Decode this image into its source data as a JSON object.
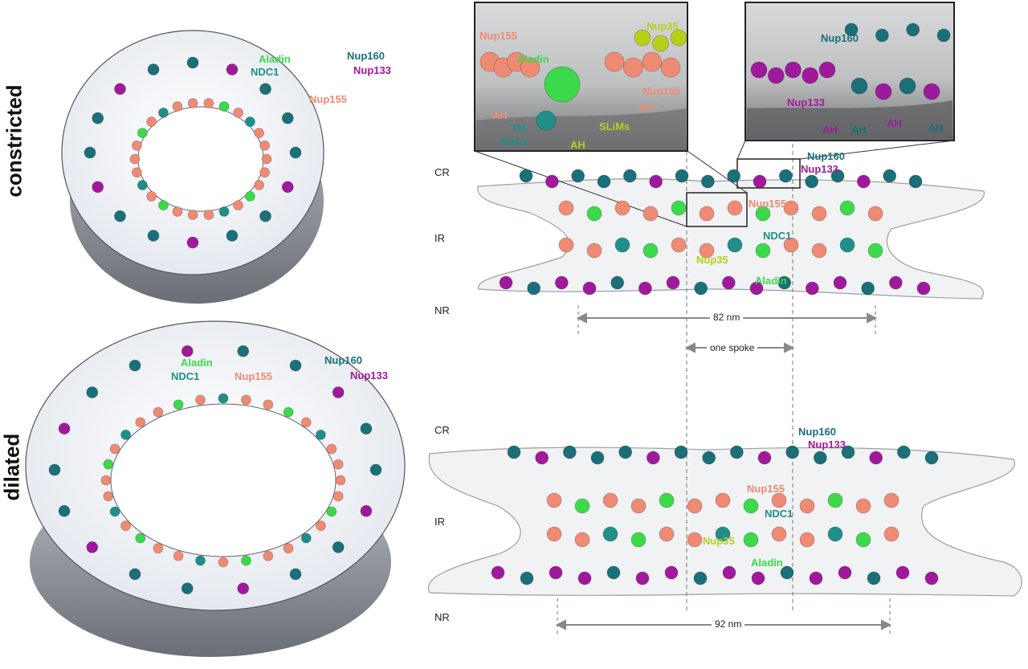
{
  "rows": {
    "top": "constricted",
    "bottom": "dilated"
  },
  "levels": {
    "cr": "CR",
    "ir": "IR",
    "nr": "NR"
  },
  "labels": {
    "nup160": "Nup160",
    "nup133": "Nup133",
    "nup155": "Nup155",
    "aladin": "Aladin",
    "ndc1": "NDC1",
    "nup35": "Nup35",
    "ah": "AH",
    "tm": "TM",
    "slims": "SLiMs"
  },
  "measurements": {
    "constricted_diameter": "82 nm",
    "spoke": "one spoke",
    "dilated_diameter": "92 nm"
  },
  "colors": {
    "nup160": "#1a6f78",
    "nup133": "#a0199c",
    "nup155": "#ef8a74",
    "aladin": "#3cd94a",
    "ndc1": "#1f8f8a",
    "nup35": "#b8cf1a",
    "membrane": "#e9edf3"
  }
}
